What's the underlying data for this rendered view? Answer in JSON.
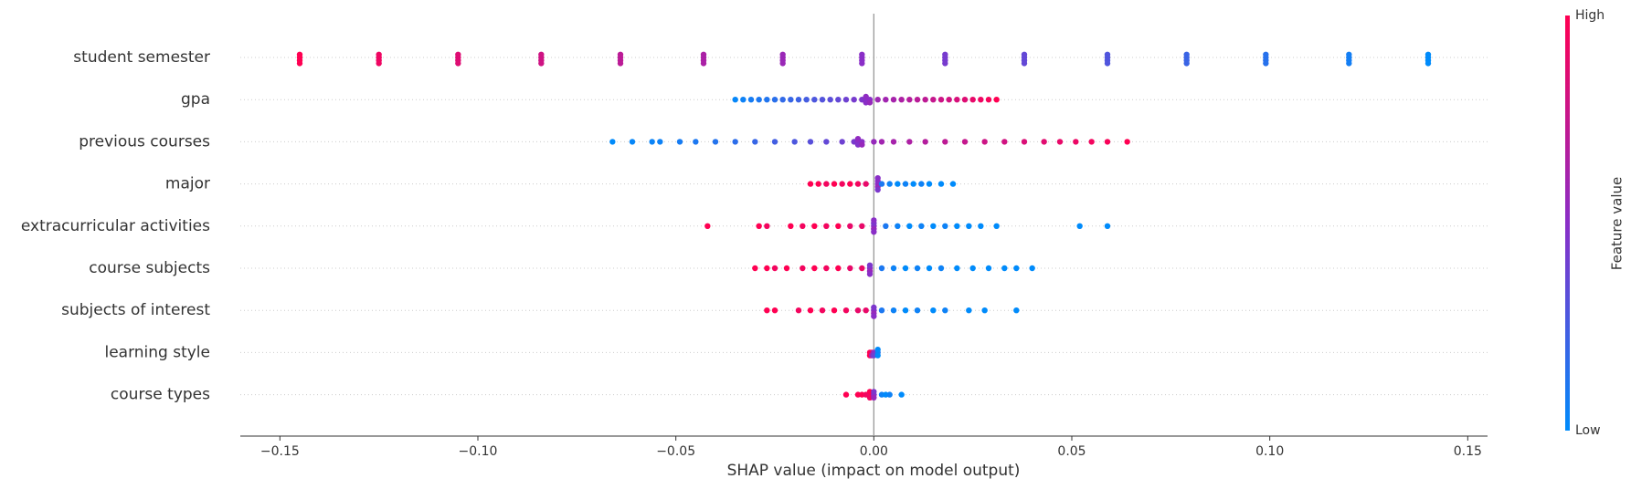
{
  "chart_data": {
    "type": "beeswarm",
    "xlabel": "SHAP value (impact on model output)",
    "xlim": [
      -0.16,
      0.155
    ],
    "xticks": [
      {
        "value": -0.15,
        "label": "−0.15"
      },
      {
        "value": -0.1,
        "label": "−0.10"
      },
      {
        "value": -0.05,
        "label": "−0.05"
      },
      {
        "value": 0,
        "label": "0.00"
      },
      {
        "value": 0.05,
        "label": "0.05"
      },
      {
        "value": 0.1,
        "label": "0.10"
      },
      {
        "value": 0.15,
        "label": "0.15"
      }
    ],
    "colormap": [
      "#008bfb",
      "#8a2ec7",
      "#ff0052"
    ],
    "colorbar": {
      "label": "Feature value",
      "high": "High",
      "low": "Low"
    },
    "features": [
      {
        "name": "student semester",
        "shap": [
          -0.145,
          -0.145,
          -0.145,
          -0.145,
          -0.125,
          -0.125,
          -0.125,
          -0.125,
          -0.105,
          -0.105,
          -0.105,
          -0.105,
          -0.084,
          -0.084,
          -0.084,
          -0.084,
          -0.064,
          -0.064,
          -0.064,
          -0.064,
          -0.043,
          -0.043,
          -0.043,
          -0.043,
          -0.023,
          -0.023,
          -0.023,
          -0.023,
          -0.003,
          -0.003,
          -0.003,
          -0.003,
          0.018,
          0.018,
          0.018,
          0.018,
          0.038,
          0.038,
          0.038,
          0.038,
          0.059,
          0.059,
          0.059,
          0.059,
          0.079,
          0.079,
          0.079,
          0.079,
          0.099,
          0.099,
          0.099,
          0.099,
          0.12,
          0.12,
          0.12,
          0.12,
          0.14,
          0.14,
          0.14,
          0.14
        ],
        "feature_value": [
          1,
          1,
          1,
          1,
          0.93,
          0.93,
          0.93,
          0.93,
          0.86,
          0.86,
          0.86,
          0.86,
          0.79,
          0.79,
          0.79,
          0.79,
          0.71,
          0.71,
          0.71,
          0.71,
          0.64,
          0.64,
          0.64,
          0.64,
          0.57,
          0.57,
          0.57,
          0.57,
          0.5,
          0.5,
          0.5,
          0.5,
          0.43,
          0.43,
          0.43,
          0.43,
          0.36,
          0.36,
          0.36,
          0.36,
          0.29,
          0.29,
          0.29,
          0.29,
          0.21,
          0.21,
          0.21,
          0.21,
          0.14,
          0.14,
          0.14,
          0.14,
          0.07,
          0.07,
          0.07,
          0.07,
          0,
          0,
          0,
          0
        ]
      },
      {
        "name": "gpa",
        "shap": [
          -0.035,
          -0.033,
          -0.031,
          -0.029,
          -0.027,
          -0.025,
          -0.023,
          -0.021,
          -0.019,
          -0.017,
          -0.015,
          -0.013,
          -0.011,
          -0.009,
          -0.007,
          -0.005,
          -0.003,
          -0.002,
          -0.002,
          -0.002,
          -0.001,
          -0.001,
          0.001,
          0.003,
          0.005,
          0.007,
          0.009,
          0.011,
          0.013,
          0.015,
          0.017,
          0.019,
          0.021,
          0.023,
          0.025,
          0.027,
          0.029,
          0.031
        ],
        "feature_value": [
          0.02,
          0.05,
          0.08,
          0.1,
          0.12,
          0.15,
          0.18,
          0.2,
          0.22,
          0.25,
          0.28,
          0.3,
          0.33,
          0.36,
          0.4,
          0.43,
          0.46,
          0.48,
          0.5,
          0.52,
          0.5,
          0.55,
          0.58,
          0.6,
          0.62,
          0.65,
          0.68,
          0.7,
          0.72,
          0.75,
          0.78,
          0.8,
          0.83,
          0.86,
          0.9,
          0.93,
          0.96,
          1.0
        ]
      },
      {
        "name": "previous courses",
        "shap": [
          -0.066,
          -0.061,
          -0.056,
          -0.054,
          -0.049,
          -0.045,
          -0.04,
          -0.035,
          -0.03,
          -0.025,
          -0.02,
          -0.016,
          -0.012,
          -0.008,
          -0.005,
          -0.004,
          -0.004,
          -0.004,
          -0.003,
          -0.003,
          0.0,
          0.002,
          0.005,
          0.009,
          0.013,
          0.018,
          0.023,
          0.028,
          0.033,
          0.038,
          0.043,
          0.047,
          0.051,
          0.055,
          0.059,
          0.064
        ],
        "feature_value": [
          0.0,
          0.02,
          0.04,
          0.05,
          0.08,
          0.1,
          0.13,
          0.16,
          0.2,
          0.24,
          0.28,
          0.32,
          0.36,
          0.4,
          0.44,
          0.5,
          0.47,
          0.53,
          0.5,
          0.55,
          0.55,
          0.6,
          0.62,
          0.65,
          0.68,
          0.72,
          0.75,
          0.78,
          0.8,
          0.84,
          0.87,
          0.9,
          0.92,
          0.95,
          0.97,
          1.0
        ]
      },
      {
        "name": "major",
        "shap": [
          -0.016,
          -0.014,
          -0.012,
          -0.01,
          -0.008,
          -0.006,
          -0.004,
          -0.002,
          0.001,
          0.001,
          0.001,
          0.001,
          0.001,
          0.002,
          0.004,
          0.006,
          0.008,
          0.01,
          0.012,
          0.014,
          0.017,
          0.02
        ],
        "feature_value": [
          1,
          1,
          0.95,
          1,
          0.95,
          1,
          0.95,
          0.9,
          0.5,
          0.55,
          0.5,
          0.45,
          0.5,
          0.1,
          0.05,
          0,
          0.05,
          0,
          0.05,
          0,
          0,
          0
        ]
      },
      {
        "name": "extracurricular activities",
        "shap": [
          -0.042,
          -0.029,
          -0.027,
          -0.021,
          -0.018,
          -0.015,
          -0.012,
          -0.009,
          -0.006,
          -0.003,
          0.0,
          0.0,
          0.0,
          0.0,
          0.0,
          0.003,
          0.006,
          0.009,
          0.012,
          0.015,
          0.018,
          0.021,
          0.024,
          0.027,
          0.031,
          0.052,
          0.059
        ],
        "feature_value": [
          1,
          1,
          0.95,
          1,
          0.95,
          1,
          0.95,
          1,
          0.9,
          0.9,
          0.5,
          0.55,
          0.45,
          0.5,
          0.5,
          0.1,
          0.05,
          0,
          0.05,
          0,
          0.05,
          0,
          0,
          0,
          0,
          0,
          0
        ]
      },
      {
        "name": "course subjects",
        "shap": [
          -0.03,
          -0.027,
          -0.025,
          -0.022,
          -0.018,
          -0.015,
          -0.012,
          -0.009,
          -0.006,
          -0.003,
          -0.001,
          -0.001,
          -0.001,
          -0.001,
          0.002,
          0.005,
          0.008,
          0.011,
          0.014,
          0.017,
          0.021,
          0.025,
          0.029,
          0.033,
          0.036,
          0.04
        ],
        "feature_value": [
          1,
          1,
          0.95,
          1,
          0.95,
          1,
          0.95,
          1,
          0.9,
          0.9,
          0.5,
          0.55,
          0.45,
          0.5,
          0.1,
          0.05,
          0,
          0.05,
          0,
          0.05,
          0,
          0,
          0,
          0,
          0,
          0
        ]
      },
      {
        "name": "subjects of interest",
        "shap": [
          -0.027,
          -0.025,
          -0.019,
          -0.016,
          -0.013,
          -0.01,
          -0.007,
          -0.004,
          -0.002,
          0.0,
          0.0,
          0.0,
          0.0,
          0.002,
          0.005,
          0.008,
          0.011,
          0.015,
          0.018,
          0.024,
          0.028,
          0.036
        ],
        "feature_value": [
          1,
          1,
          0.95,
          1,
          0.95,
          1,
          0.95,
          0.9,
          0.9,
          0.5,
          0.55,
          0.45,
          0.5,
          0.1,
          0.05,
          0,
          0.05,
          0,
          0.05,
          0,
          0,
          0
        ]
      },
      {
        "name": "learning style",
        "shap": [
          -0.001,
          -0.001,
          -0.0005,
          -0.0005,
          0.0,
          0.0,
          0.001,
          0.001,
          0.001
        ],
        "feature_value": [
          1,
          1,
          0.9,
          0.6,
          0.5,
          0.4,
          0.1,
          0,
          0
        ]
      },
      {
        "name": "course types",
        "shap": [
          -0.007,
          -0.004,
          -0.003,
          -0.002,
          -0.001,
          -0.001,
          -0.001,
          0.0,
          0.0,
          0.0,
          0.002,
          0.003,
          0.004,
          0.007
        ],
        "feature_value": [
          1,
          1,
          1,
          0.95,
          0.9,
          0.95,
          1,
          0.5,
          0.55,
          0.45,
          0.05,
          0,
          0.05,
          0
        ]
      }
    ]
  }
}
